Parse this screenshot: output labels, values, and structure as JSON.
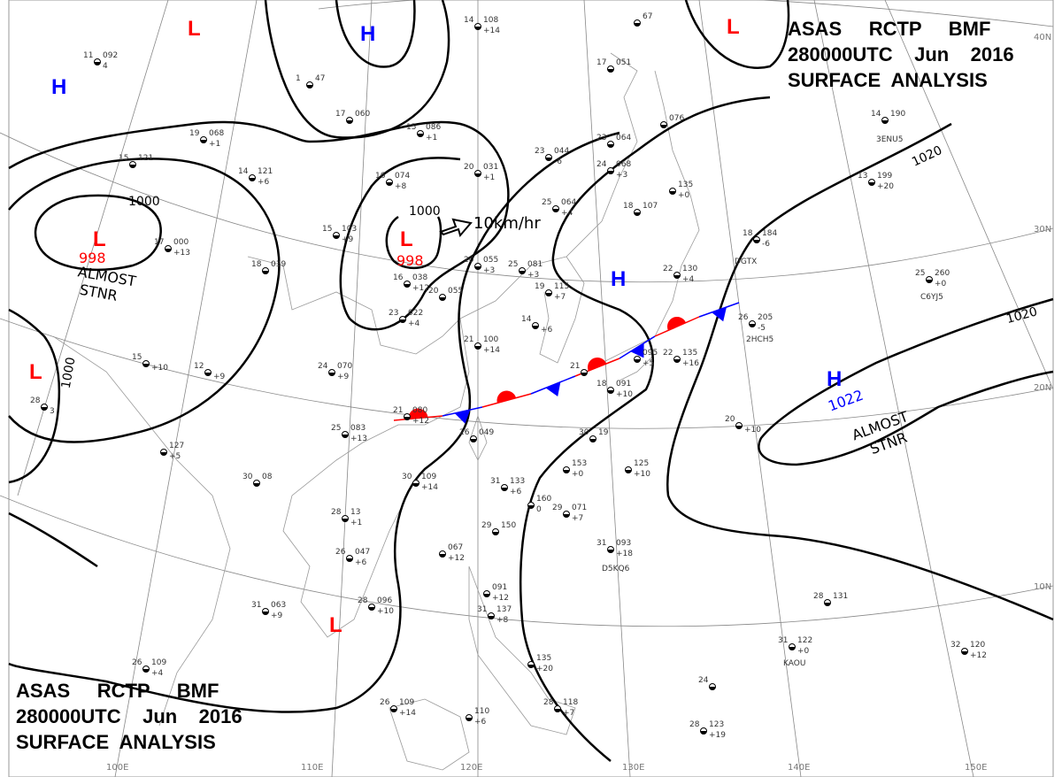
{
  "header_top": {
    "line1": [
      "ASAS",
      "RCTP",
      "BMF"
    ],
    "line2": [
      "280000UTC",
      "Jun",
      "2016"
    ],
    "line3": "SURFACE  ANALYSIS"
  },
  "header_bottom": {
    "line1": [
      "ASAS",
      "RCTP",
      "BMF"
    ],
    "line2": [
      "280000UTC",
      "Jun",
      "2016"
    ],
    "line3": "SURFACE  ANALYSIS"
  },
  "colors": {
    "low": "#ff0000",
    "high": "#0000ff",
    "warm_front": "#ff0000",
    "cold_front": "#0000ff",
    "isobar": "#000000",
    "grid": "#888888"
  },
  "graticule": {
    "longitudes": [
      "100E",
      "110E",
      "120E",
      "130E",
      "140E",
      "150E"
    ],
    "latitudes": [
      "40N",
      "30N",
      "20N",
      "10N"
    ]
  },
  "pressure_centers": [
    {
      "type": "L",
      "value": ""
    },
    {
      "type": "H",
      "value": ""
    },
    {
      "type": "L",
      "value": ""
    },
    {
      "type": "H",
      "value": ""
    },
    {
      "type": "L",
      "value": "998",
      "note": [
        "ALMOST",
        "STNR"
      ]
    },
    {
      "type": "L",
      "value": "998",
      "motion": "10km/hr"
    },
    {
      "type": "H",
      "value": ""
    },
    {
      "type": "L",
      "value": ""
    },
    {
      "type": "H",
      "value": "1022",
      "note": [
        "ALMOST",
        "STNR"
      ]
    },
    {
      "type": "L",
      "value": ""
    }
  ],
  "isobar_labels": [
    "1000",
    "1000",
    "1020",
    "1020",
    "1000"
  ],
  "front": {
    "type": "stationary"
  },
  "ship_calls": [
    "3ENU5",
    "DGTX",
    "C6YJ5",
    "2HCH5",
    "D5KQ6",
    "KAOU"
  ],
  "stations": [
    {
      "t": "11",
      "p": "092",
      "x": "4"
    },
    {
      "t": "1",
      "p": "47",
      "x": ""
    },
    {
      "t": "14",
      "p": "108",
      "x": "+14"
    },
    {
      "t": "",
      "p": "67",
      "x": ""
    },
    {
      "t": "17",
      "p": "051",
      "x": ""
    },
    {
      "t": "17",
      "p": "060",
      "x": ""
    },
    {
      "t": "15",
      "p": "086",
      "x": "+1"
    },
    {
      "t": "19",
      "p": "068",
      "x": "+1"
    },
    {
      "t": "14",
      "p": "121",
      "x": "+6"
    },
    {
      "t": "15",
      "p": "121",
      "x": ""
    },
    {
      "t": "16",
      "p": "074",
      "x": "+8"
    },
    {
      "t": "20",
      "p": "031",
      "x": "+1"
    },
    {
      "t": "23",
      "p": "044",
      "x": "-6"
    },
    {
      "t": "23",
      "p": "064",
      "x": ""
    },
    {
      "t": "",
      "p": "076",
      "x": ""
    },
    {
      "t": "24",
      "p": "068",
      "x": "+3"
    },
    {
      "t": "14",
      "p": "190",
      "x": ""
    },
    {
      "t": "13",
      "p": "199",
      "x": "+20"
    },
    {
      "t": "15",
      "p": "103",
      "x": "+9"
    },
    {
      "t": "25",
      "p": "064",
      "x": "+4"
    },
    {
      "t": "",
      "p": "135",
      "x": "+0"
    },
    {
      "t": "18",
      "p": "107",
      "x": ""
    },
    {
      "t": "17",
      "p": "000",
      "x": "+13"
    },
    {
      "t": "18",
      "p": "039",
      "x": ""
    },
    {
      "t": "20",
      "p": "055",
      "x": "+3"
    },
    {
      "t": "25",
      "p": "081",
      "x": "+3"
    },
    {
      "t": "16",
      "p": "038",
      "x": "+12"
    },
    {
      "t": "20",
      "p": "055",
      "x": ""
    },
    {
      "t": "18",
      "p": "184",
      "x": "-6"
    },
    {
      "t": "25",
      "p": "260",
      "x": "+0"
    },
    {
      "t": "22",
      "p": "130",
      "x": "+4"
    },
    {
      "t": "19",
      "p": "115",
      "x": "+7"
    },
    {
      "t": "23",
      "p": "022",
      "x": "+4"
    },
    {
      "t": "14",
      "p": "",
      "x": "+6"
    },
    {
      "t": "26",
      "p": "205",
      "x": "-5"
    },
    {
      "t": "21",
      "p": "100",
      "x": "+14"
    },
    {
      "t": "22",
      "p": "135",
      "x": "+16"
    },
    {
      "t": "",
      "p": "095",
      "x": "+5"
    },
    {
      "t": "15",
      "p": "",
      "x": "+10"
    },
    {
      "t": "12",
      "p": "",
      "x": "+9"
    },
    {
      "t": "24",
      "p": "070",
      "x": "+9"
    },
    {
      "t": "28",
      "p": "",
      "x": "3"
    },
    {
      "t": "21",
      "p": "080",
      "x": "+12"
    },
    {
      "t": "21",
      "p": "",
      "x": ""
    },
    {
      "t": "18",
      "p": "091",
      "x": "+10"
    },
    {
      "t": "25",
      "p": "083",
      "x": "+13"
    },
    {
      "t": "26",
      "p": "049",
      "x": ""
    },
    {
      "t": "",
      "p": "127",
      "x": "+5"
    },
    {
      "t": "30",
      "p": "19",
      "x": ""
    },
    {
      "t": "20",
      "p": "",
      "x": "+10"
    },
    {
      "t": "30",
      "p": "08",
      "x": ""
    },
    {
      "t": "30",
      "p": "109",
      "x": "+14"
    },
    {
      "t": "31",
      "p": "133",
      "x": "+6"
    },
    {
      "t": "",
      "p": "153",
      "x": "+0"
    },
    {
      "t": "",
      "p": "125",
      "x": "+10"
    },
    {
      "t": "",
      "p": "160",
      "x": "0"
    },
    {
      "t": "29",
      "p": "071",
      "x": "+7"
    },
    {
      "t": "28",
      "p": "13",
      "x": "+1"
    },
    {
      "t": "29",
      "p": "150",
      "x": ""
    },
    {
      "t": "31",
      "p": "093",
      "x": "+18"
    },
    {
      "t": "",
      "p": "067",
      "x": "+12"
    },
    {
      "t": "26",
      "p": "047",
      "x": "+6"
    },
    {
      "t": "31",
      "p": "063",
      "x": "+9"
    },
    {
      "t": "28",
      "p": "096",
      "x": "+10"
    },
    {
      "t": "",
      "p": "091",
      "x": "+12"
    },
    {
      "t": "31",
      "p": "137",
      "x": "+8"
    },
    {
      "t": "28",
      "p": "131",
      "x": ""
    },
    {
      "t": "31",
      "p": "122",
      "x": "+0"
    },
    {
      "t": "32",
      "p": "120",
      "x": "+12"
    },
    {
      "t": "24",
      "p": "",
      "x": ""
    },
    {
      "t": "26",
      "p": "109",
      "x": "+4"
    },
    {
      "t": "26",
      "p": "109",
      "x": "+14"
    },
    {
      "t": "",
      "p": "110",
      "x": "+6"
    },
    {
      "t": "",
      "p": "135",
      "x": "+20"
    },
    {
      "t": "28",
      "p": "118",
      "x": "+7"
    },
    {
      "t": "28",
      "p": "123",
      "x": "+19"
    }
  ]
}
